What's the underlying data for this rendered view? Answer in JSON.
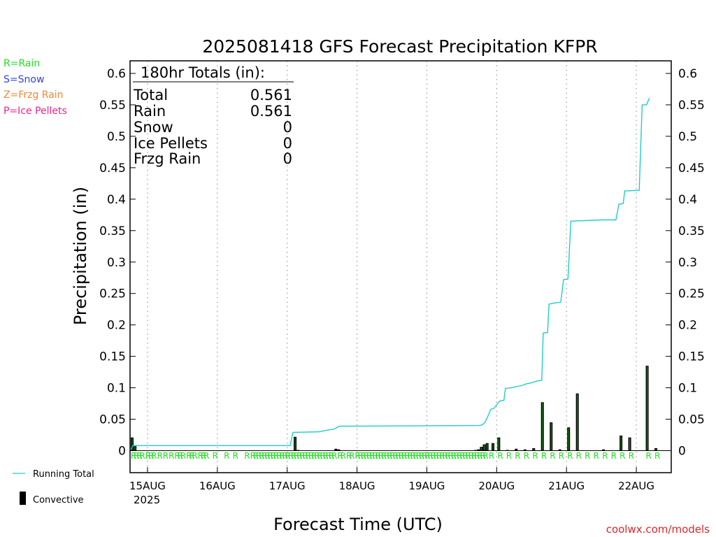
{
  "title": "2025081418 GFS Forecast Precipitation KFPR",
  "ylabel": "Precipitation (in)",
  "xlabel": "Forecast Time (UTC)",
  "credit": "coolwx.com/models",
  "ptype_legend": [
    {
      "text": "R=Rain",
      "color": "#22dd22"
    },
    {
      "text": "S=Snow",
      "color": "#3344dd"
    },
    {
      "text": "Z=Frzg Rain",
      "color": "#ee8833"
    },
    {
      "text": "P=Ice Pellets",
      "color": "#ee2288"
    }
  ],
  "series_legend": {
    "running_total": "Running Total",
    "convective": "Convective"
  },
  "totals_box": {
    "heading": "180hr Totals (in):",
    "rows": [
      {
        "label": "Total",
        "value": "0.561"
      },
      {
        "label": "Rain",
        "value": "0.561"
      },
      {
        "label": "Snow",
        "value": "0"
      },
      {
        "label": "Ice Pellets",
        "value": "0"
      },
      {
        "label": "Frzg Rain",
        "value": "0"
      }
    ]
  },
  "colors": {
    "running_total": "#22cccc",
    "bar": "#000000",
    "bar_inner": "#22aa22",
    "rain_marker": "#22dd22"
  },
  "chart_data": {
    "type": "bar",
    "ylim": [
      -0.035,
      0.62
    ],
    "yticks": [
      0,
      0.05,
      0.1,
      0.15,
      0.2,
      0.25,
      0.3,
      0.35,
      0.4,
      0.45,
      0.5,
      0.55,
      0.6
    ],
    "ytick_labels": [
      "0",
      "0.05",
      "0.1",
      "0.15",
      "0.2",
      "0.25",
      "0.3",
      "0.35",
      "0.4",
      "0.45",
      "0.5",
      "0.55",
      "0.6"
    ],
    "x_unit": "forecast hours from 2025-08-14 18Z",
    "xlim": [
      0,
      186
    ],
    "grid": "vertical dotted at day boundaries",
    "xticks": [
      {
        "hour": 6,
        "label": "15AUG",
        "sub": "2025"
      },
      {
        "hour": 30,
        "label": "16AUG",
        "sub": ""
      },
      {
        "hour": 54,
        "label": "17AUG",
        "sub": ""
      },
      {
        "hour": 78,
        "label": "18AUG",
        "sub": ""
      },
      {
        "hour": 102,
        "label": "19AUG",
        "sub": ""
      },
      {
        "hour": 126,
        "label": "20AUG",
        "sub": ""
      },
      {
        "hour": 150,
        "label": "21AUG",
        "sub": ""
      },
      {
        "hour": 174,
        "label": "22AUG",
        "sub": ""
      }
    ],
    "running_total": [
      [
        0,
        0.0
      ],
      [
        1,
        0.008
      ],
      [
        55,
        0.008
      ],
      [
        56,
        0.029
      ],
      [
        65,
        0.03
      ],
      [
        68,
        0.033
      ],
      [
        70,
        0.034
      ],
      [
        72,
        0.039
      ],
      [
        120,
        0.04
      ],
      [
        121,
        0.041
      ],
      [
        122,
        0.045
      ],
      [
        123,
        0.055
      ],
      [
        124,
        0.066
      ],
      [
        125,
        0.067
      ],
      [
        127,
        0.079
      ],
      [
        128.5,
        0.08
      ],
      [
        129,
        0.099
      ],
      [
        131,
        0.1
      ],
      [
        132,
        0.101
      ],
      [
        135,
        0.104
      ],
      [
        136,
        0.106
      ],
      [
        138,
        0.108
      ],
      [
        140,
        0.111
      ],
      [
        141.5,
        0.112
      ],
      [
        142,
        0.187
      ],
      [
        143.5,
        0.188
      ],
      [
        144,
        0.233
      ],
      [
        146,
        0.235
      ],
      [
        148,
        0.236
      ],
      [
        149,
        0.272
      ],
      [
        150.5,
        0.273
      ],
      [
        151.5,
        0.365
      ],
      [
        162,
        0.367
      ],
      [
        167,
        0.367
      ],
      [
        168,
        0.392
      ],
      [
        169.5,
        0.393
      ],
      [
        170,
        0.413
      ],
      [
        175,
        0.414
      ],
      [
        176,
        0.55
      ],
      [
        177.5,
        0.55
      ],
      [
        178.5,
        0.561
      ]
    ],
    "precip_bars": [
      {
        "hour": 0,
        "value": 0.021
      },
      {
        "hour": 1,
        "value": 0.008
      },
      {
        "hour": 56,
        "value": 0.022
      },
      {
        "hour": 57,
        "value": 0.001
      },
      {
        "hour": 70,
        "value": 0.003
      },
      {
        "hour": 71,
        "value": 0.002
      },
      {
        "hour": 118,
        "value": 0.001
      },
      {
        "hour": 119,
        "value": 0.002
      },
      {
        "hour": 120,
        "value": 0.006
      },
      {
        "hour": 121,
        "value": 0.01
      },
      {
        "hour": 122,
        "value": 0.012
      },
      {
        "hour": 124,
        "value": 0.012
      },
      {
        "hour": 126,
        "value": 0.021
      },
      {
        "hour": 129,
        "value": 0.001
      },
      {
        "hour": 132,
        "value": 0.003
      },
      {
        "hour": 135,
        "value": 0.002
      },
      {
        "hour": 138,
        "value": 0.004
      },
      {
        "hour": 141,
        "value": 0.077
      },
      {
        "hour": 144,
        "value": 0.045
      },
      {
        "hour": 147,
        "value": 0.002
      },
      {
        "hour": 150,
        "value": 0.037
      },
      {
        "hour": 153,
        "value": 0.091
      },
      {
        "hour": 162,
        "value": 0.002
      },
      {
        "hour": 168,
        "value": 0.024
      },
      {
        "hour": 171,
        "value": 0.021
      },
      {
        "hour": 177,
        "value": 0.135
      },
      {
        "hour": 180,
        "value": 0.004
      }
    ],
    "ptype_markers": {
      "type": "R",
      "hours": [
        0,
        1,
        2,
        3,
        5,
        6,
        7,
        9,
        11,
        13,
        15,
        16,
        17,
        19,
        20,
        21,
        23,
        24,
        25,
        28,
        32,
        35,
        39,
        41,
        42,
        43,
        44,
        45,
        46,
        47,
        48,
        49,
        50,
        51,
        52,
        53,
        54,
        55,
        56,
        57,
        58,
        59,
        60,
        61,
        62,
        63,
        64,
        65,
        66,
        67,
        68,
        69,
        71,
        72,
        74,
        75,
        77,
        78,
        79,
        80,
        81,
        82,
        83,
        84,
        85,
        86,
        87,
        88,
        89,
        90,
        91,
        92,
        93,
        94,
        95,
        96,
        97,
        98,
        99,
        100,
        101,
        102,
        103,
        104,
        105,
        106,
        107,
        108,
        109,
        110,
        111,
        112,
        113,
        114,
        115,
        116,
        117,
        118,
        119,
        120,
        121,
        123,
        126,
        129,
        132,
        135,
        138,
        141,
        144,
        147,
        150,
        153,
        156,
        159,
        162,
        165,
        168,
        171,
        177,
        180
      ]
    }
  }
}
